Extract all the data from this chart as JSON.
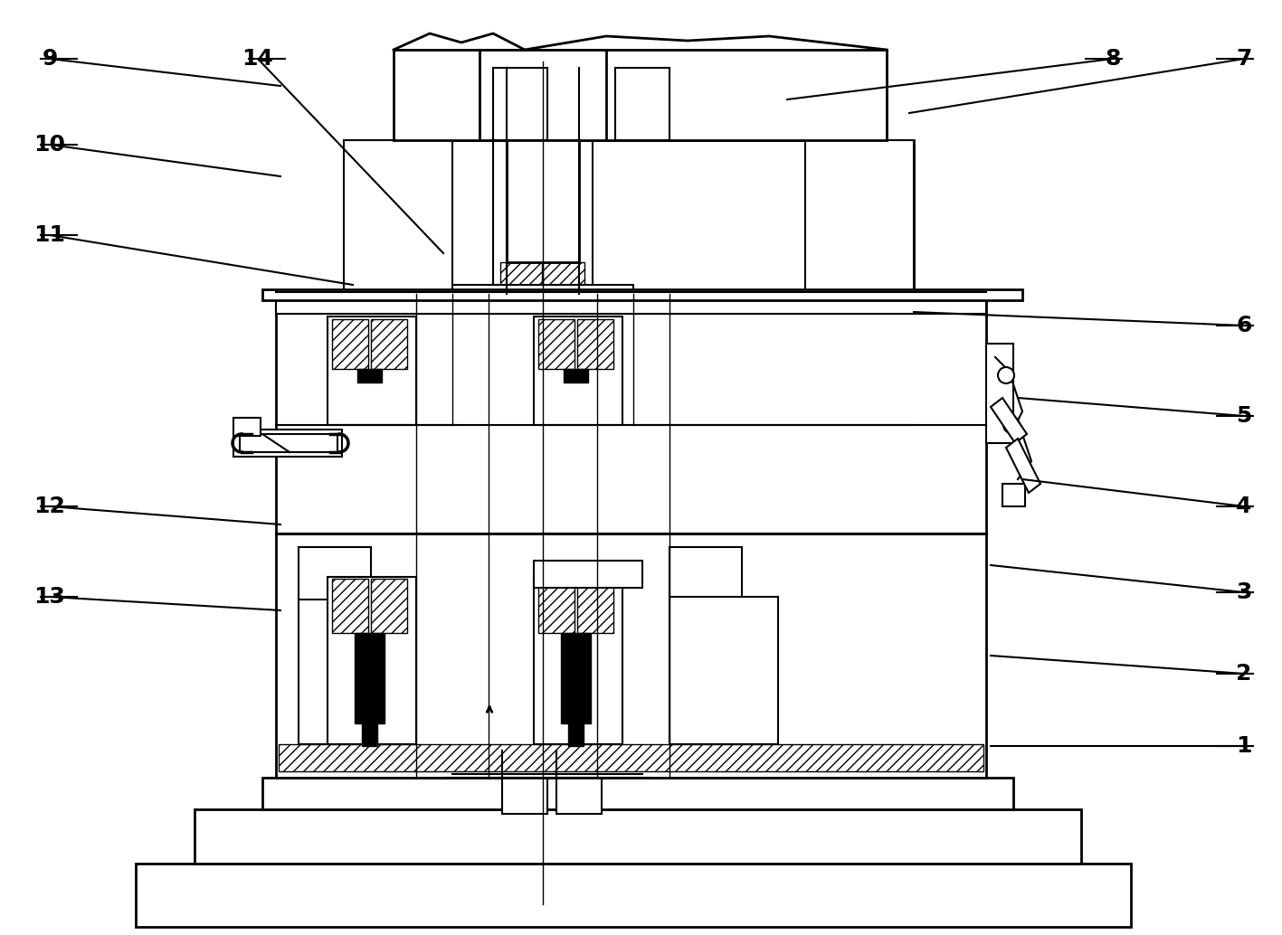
{
  "bg_color": "#ffffff",
  "lc": "#000000",
  "figsize": [
    14.17,
    10.34
  ],
  "dpi": 100,
  "lw_main": 2.0,
  "lw_med": 1.5,
  "lw_thin": 1.0,
  "labels_right": [
    [
      "1",
      1370,
      825
    ],
    [
      "2",
      1370,
      745
    ],
    [
      "3",
      1370,
      650
    ],
    [
      "4",
      1370,
      555
    ],
    [
      "5",
      1370,
      455
    ],
    [
      "6",
      1370,
      355
    ],
    [
      "7",
      1370,
      65
    ],
    [
      "8",
      1230,
      65
    ]
  ],
  "labels_left": [
    [
      "9",
      55,
      65
    ],
    [
      "10",
      55,
      160
    ],
    [
      "11",
      55,
      260
    ],
    [
      "12",
      55,
      560
    ],
    [
      "13",
      55,
      655
    ]
  ],
  "label_14": [
    "14",
    285,
    65
  ]
}
